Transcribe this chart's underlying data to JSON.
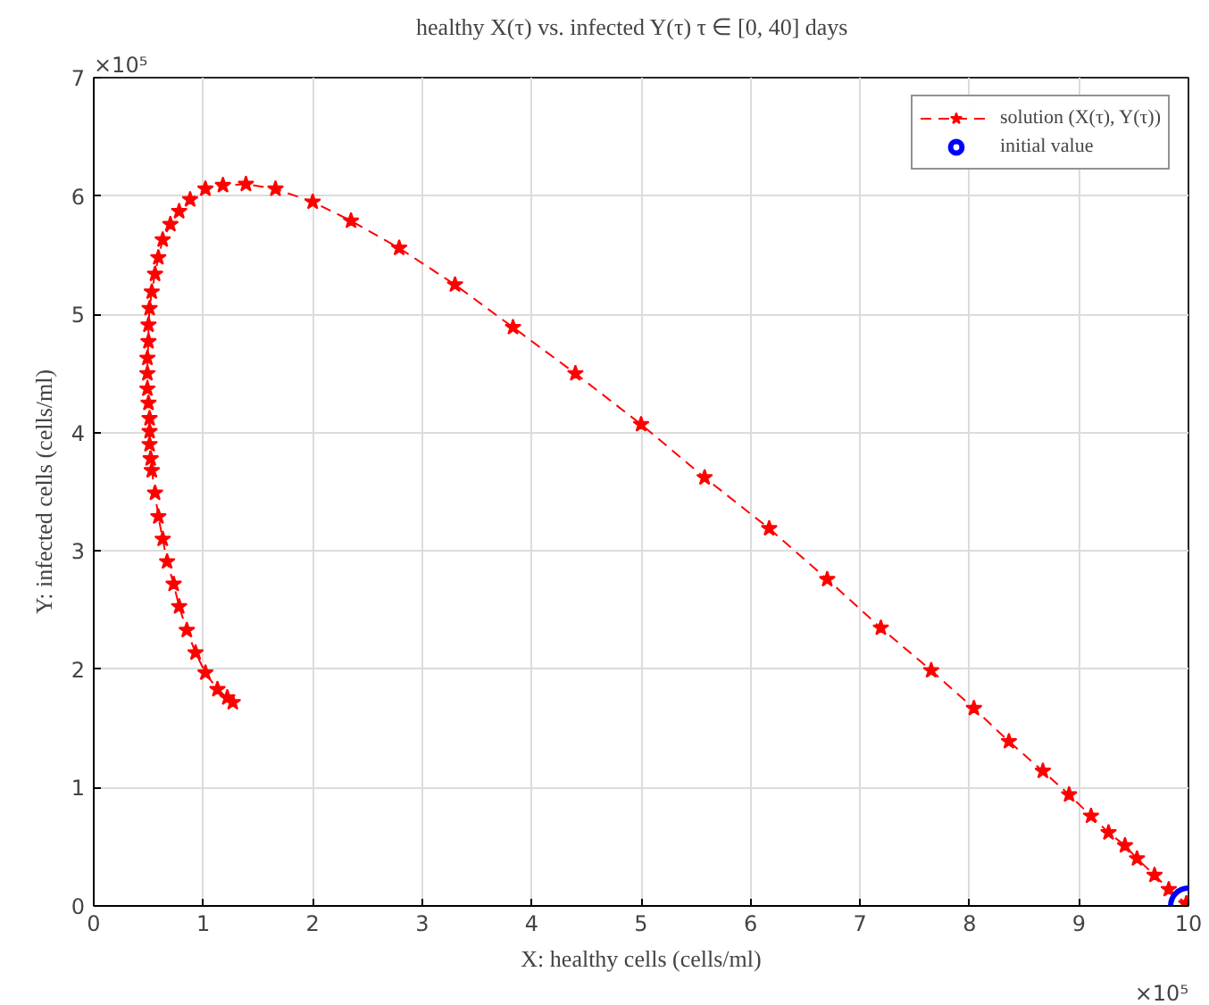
{
  "chart_data": {
    "type": "line",
    "title": "healthy X(τ) vs. infected Y(τ)    τ ∈ [0, 40] days",
    "xlabel": "X: healthy cells (cells/ml)",
    "ylabel": "Y: infected cells (cells/ml)",
    "annotations": [
      "×10⁵",
      "×10⁵"
    ],
    "xlim": [
      0,
      10
    ],
    "ylim": [
      0,
      7
    ],
    "xticks": [
      0,
      1,
      2,
      3,
      4,
      5,
      6,
      7,
      8,
      9,
      10
    ],
    "yticks": [
      0,
      1,
      2,
      3,
      4,
      5,
      6,
      7
    ],
    "grid": true,
    "legend": "top right",
    "series": [
      {
        "name": "solution (X(τ), Y(τ))",
        "color": "#ff0000",
        "marker": "star",
        "line_style": "dashed",
        "x": [
          10,
          9.98,
          9.82,
          9.69,
          9.53,
          9.42,
          9.27,
          9.11,
          8.91,
          8.67,
          8.36,
          8.04,
          7.65,
          7.19,
          6.7,
          6.17,
          5.58,
          5.0,
          4.4,
          3.83,
          3.3,
          2.79,
          2.35,
          2.0,
          1.66,
          1.39,
          1.18,
          1.02,
          0.88,
          0.78,
          0.7,
          0.63,
          0.59,
          0.56,
          0.53,
          0.51,
          0.5,
          0.5,
          0.49,
          0.49,
          0.49,
          0.5,
          0.51,
          0.51,
          0.51,
          0.52,
          0.53,
          0.56,
          0.59,
          0.63,
          0.67,
          0.73,
          0.78,
          0.85,
          0.93,
          1.02,
          1.13,
          1.22,
          1.27
        ],
        "values": [
          0,
          0.02,
          0.14,
          0.26,
          0.4,
          0.51,
          0.62,
          0.76,
          0.94,
          1.14,
          1.39,
          1.67,
          1.99,
          2.35,
          2.76,
          3.19,
          3.62,
          4.07,
          4.5,
          4.89,
          5.25,
          5.56,
          5.79,
          5.95,
          6.06,
          6.1,
          6.09,
          6.06,
          5.97,
          5.87,
          5.76,
          5.63,
          5.48,
          5.34,
          5.19,
          5.05,
          4.91,
          4.77,
          4.63,
          4.5,
          4.37,
          4.25,
          4.12,
          4.01,
          3.9,
          3.78,
          3.68,
          3.49,
          3.29,
          3.1,
          2.91,
          2.72,
          2.53,
          2.33,
          2.14,
          1.97,
          1.83,
          1.76,
          1.72
        ]
      },
      {
        "name": "initial value",
        "type": "scatter",
        "color": "#0000ff",
        "marker": "circle",
        "x": [
          10
        ],
        "values": [
          0
        ]
      }
    ]
  }
}
